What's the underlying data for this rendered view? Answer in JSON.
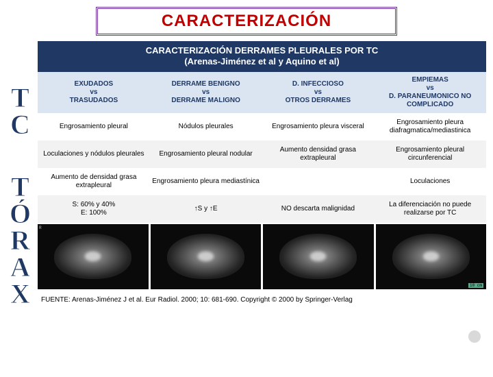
{
  "title": "CARACTERIZACIÓN",
  "side_label_1": "TC",
  "side_label_2": "TÓRAX",
  "table": {
    "header_line1": "CARACTERIZACIÓN DERRAMES PLEURALES POR TC",
    "header_line2": "(Arenas-Jiménez et al y Aquino et al)",
    "columns": [
      "EXUDADOS\nvs\nTRASUDADOS",
      "DERRAME BENIGNO\nvs\nDERRAME MALIGNO",
      "D. INFECCIOSO\nvs\nOTROS DERRAMES",
      "EMPIEMAS\nvs\nD. PARANEUMONICO NO COMPLICADO"
    ],
    "rows": [
      [
        "Engrosamiento pleural",
        "Nódulos pleurales",
        "Engrosamiento pleura visceral",
        "Engrosamiento pleura diafragmatica/mediastinica"
      ],
      [
        "Loculaciones y nódulos pleurales",
        "Engrosamiento pleural nodular",
        "Aumento densidad grasa extrapleural",
        "Engrosamiento pleural circunferencial"
      ],
      [
        "Aumento de densidad grasa extrapleural",
        "Engrosamiento pleura mediastínica",
        "",
        "Loculaciones"
      ],
      [
        "S: 60% y 40%\nE: 100%",
        "↑S  y  ↑E",
        "NO descarta malignidad",
        "La diferenciación no puede realizarse por TC"
      ]
    ]
  },
  "footer": "FUENTE: Arenas-Jiménez J et al. Eur Radiol. 2000; 10: 681-690. Copyright © 2000 by Springer-Verlag",
  "img_corner_scale": "10 cm"
}
